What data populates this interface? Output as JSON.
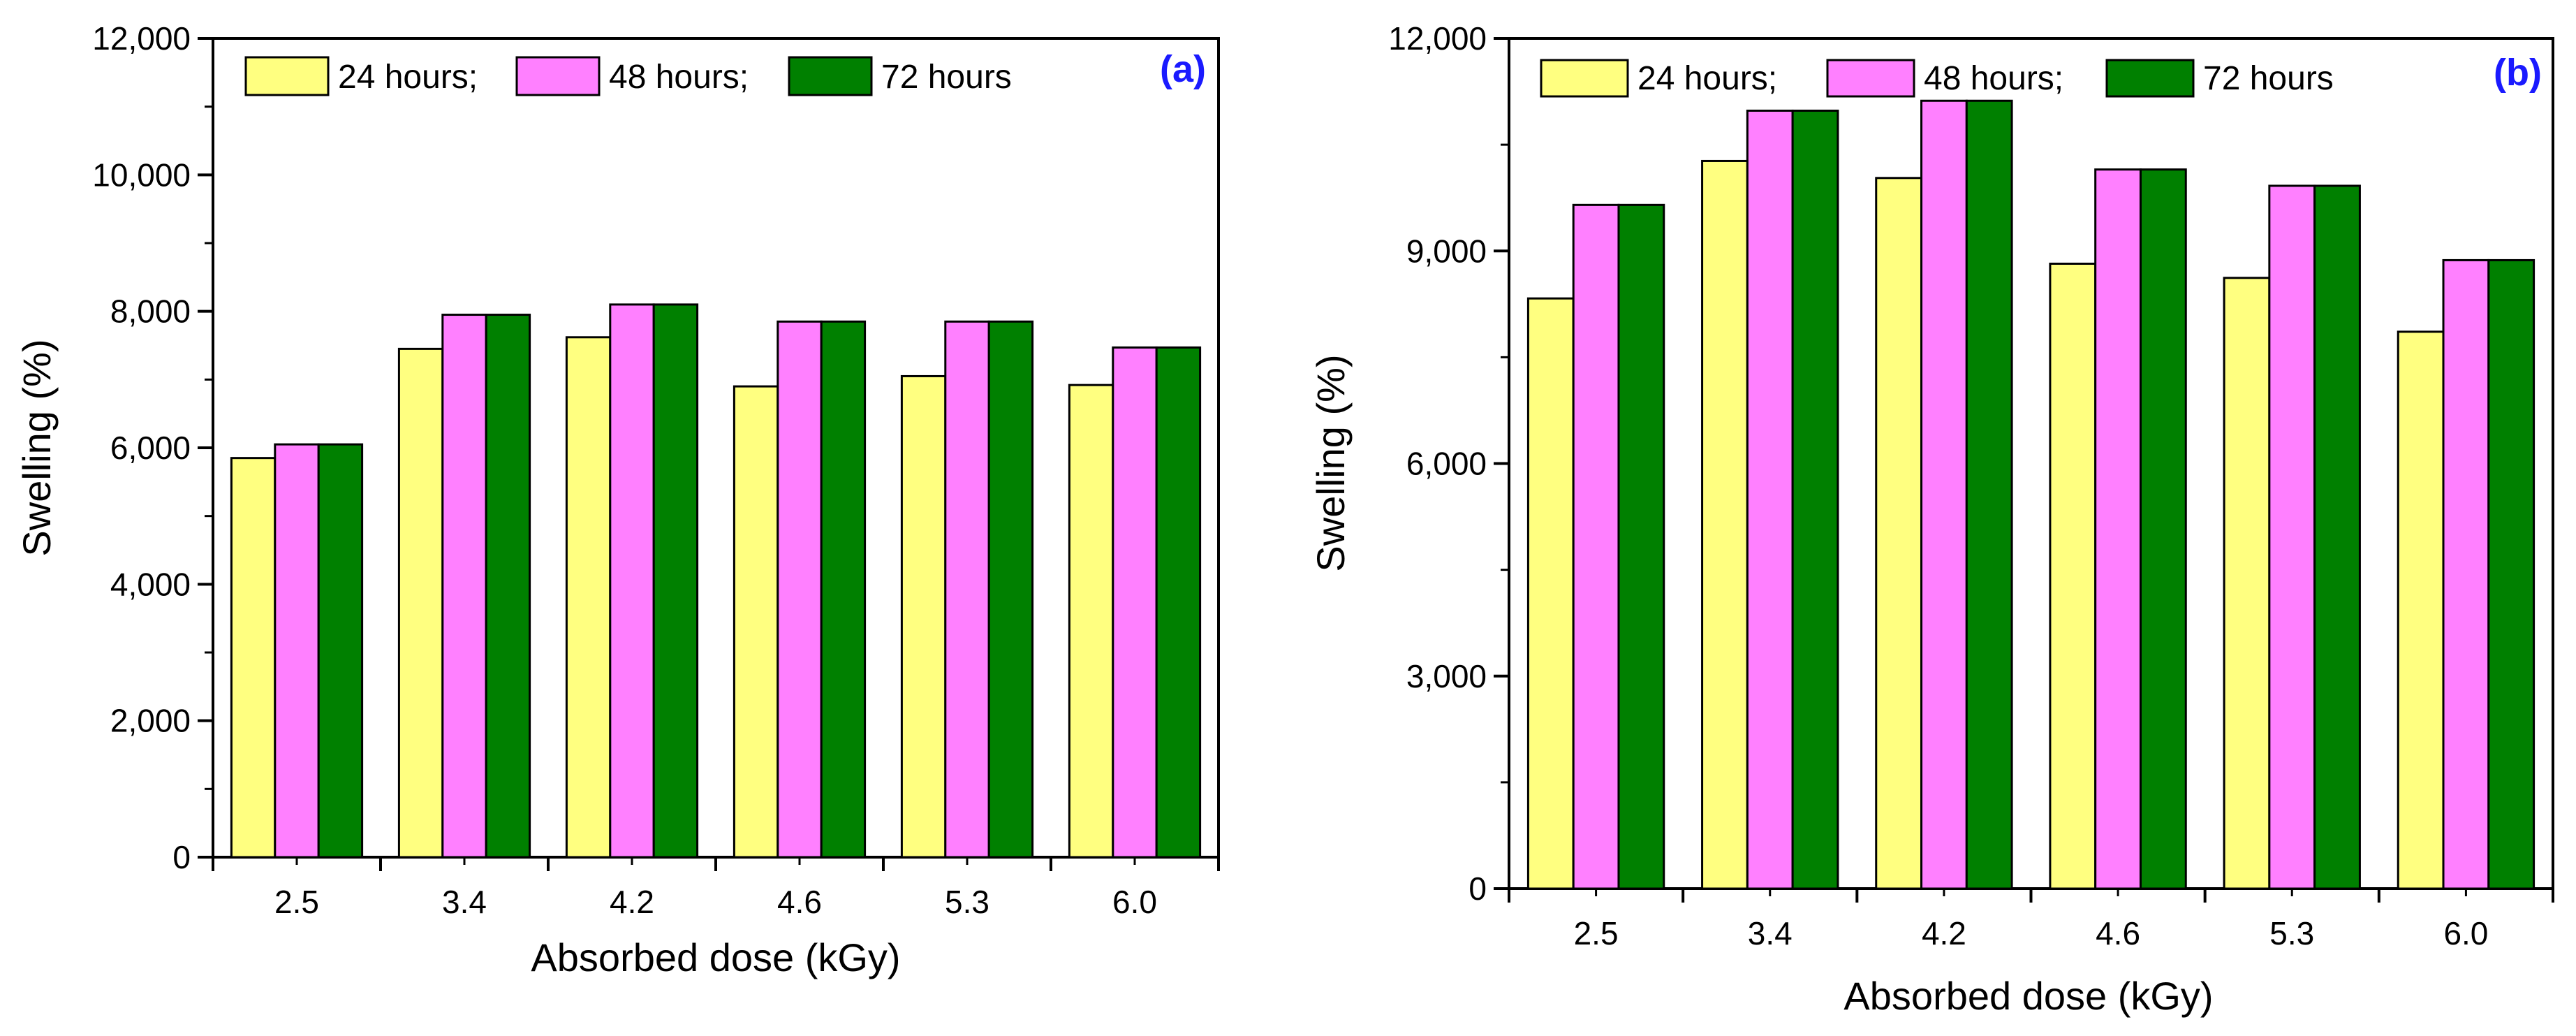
{
  "chart_data": [
    {
      "type": "bar",
      "panel_label": "(a)",
      "xlabel": "Absorbed dose (kGy)",
      "ylabel": "Swelling (%)",
      "categories": [
        "2.5",
        "3.4",
        "4.2",
        "4.6",
        "5.3",
        "6.0"
      ],
      "ylim": [
        0,
        12000
      ],
      "yticks": [
        0,
        2000,
        4000,
        6000,
        8000,
        10000,
        12000
      ],
      "ytick_labels": [
        "0",
        "2,000",
        "4,000",
        "6,000",
        "8,000",
        "10,000",
        "12,000"
      ],
      "legend_position": "top",
      "series": [
        {
          "name": "24 hours;",
          "color": "#ffff80",
          "values": [
            5850,
            7450,
            7620,
            6900,
            7050,
            6920
          ]
        },
        {
          "name": "48 hours;",
          "color": "#ff80ff",
          "values": [
            6050,
            7950,
            8100,
            7850,
            7850,
            7470
          ]
        },
        {
          "name": "72 hours",
          "color": "#008000",
          "values": [
            6050,
            7950,
            8100,
            7850,
            7850,
            7470
          ]
        }
      ]
    },
    {
      "type": "bar",
      "panel_label": "(b)",
      "xlabel": "Absorbed dose (kGy)",
      "ylabel": "Swelling (%)",
      "categories": [
        "2.5",
        "3.4",
        "4.2",
        "4.6",
        "5.3",
        "6.0"
      ],
      "ylim": [
        0,
        12000
      ],
      "yticks": [
        0,
        3000,
        6000,
        9000,
        12000
      ],
      "ytick_labels": [
        "0",
        "3,000",
        "6,000",
        "9,000",
        "12,000"
      ],
      "legend_position": "top",
      "series": [
        {
          "name": "24 hours;",
          "color": "#ffff80",
          "values": [
            8330,
            10270,
            10030,
            8820,
            8620,
            7860
          ]
        },
        {
          "name": "48 hours;",
          "color": "#ff80ff",
          "values": [
            9650,
            10980,
            11120,
            10150,
            9920,
            8870
          ]
        },
        {
          "name": "72 hours",
          "color": "#008000",
          "values": [
            9650,
            10980,
            11120,
            10150,
            9920,
            8870
          ]
        }
      ]
    }
  ]
}
